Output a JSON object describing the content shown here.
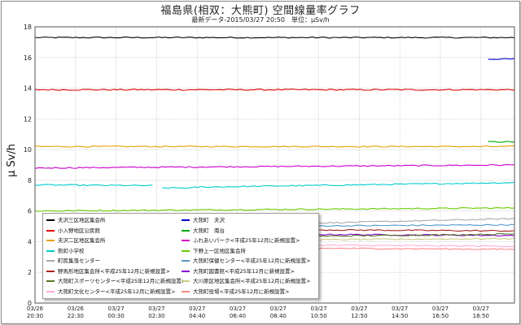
{
  "title": "福島県(相双：大熊町) 空間線量率グラフ",
  "subtitle": "最新データ-2015/03/27 20:50　単位：μSv/h",
  "chart_data": {
    "type": "line",
    "title": "福島県(相双：大熊町) 空間線量率グラフ",
    "ylabel": "μ Sv/h",
    "xlabel": "",
    "ylim": [
      0,
      18
    ],
    "yticks": [
      0,
      2,
      4,
      6,
      8,
      10,
      12,
      14,
      16,
      18
    ],
    "grid": true,
    "legend_position": "bottom-left",
    "xticks": [
      {
        "d": "03/26",
        "t": "20:30"
      },
      {
        "d": "03/26",
        "t": "22:30"
      },
      {
        "d": "03/27",
        "t": "00:30"
      },
      {
        "d": "03/27",
        "t": "02:30"
      },
      {
        "d": "03/27",
        "t": "04:40"
      },
      {
        "d": "03/27",
        "t": "06:40"
      },
      {
        "d": "03/27",
        "t": "08:40"
      },
      {
        "d": "03/27",
        "t": "10:50"
      },
      {
        "d": "03/27",
        "t": "12:50"
      },
      {
        "d": "03/27",
        "t": "14:50"
      },
      {
        "d": "03/27",
        "t": "16:50"
      },
      {
        "d": "03/27",
        "t": "18:50"
      }
    ],
    "series": [
      {
        "name": "夫沢三区地区集会所",
        "color": "#000000",
        "segments": [
          {
            "from": 0,
            "to": 1,
            "start": 17.3,
            "end": 17.3
          }
        ]
      },
      {
        "name": "大熊町　夫沢",
        "color": "#0000cc",
        "segments": [
          {
            "from": 0.945,
            "to": 1,
            "start": 15.9,
            "end": 15.9
          }
        ]
      },
      {
        "name": "小入野地区公民館",
        "color": "#dd0000",
        "segments": [
          {
            "from": 0,
            "to": 1,
            "start": 13.9,
            "end": 13.9
          }
        ]
      },
      {
        "name": "大熊町　南台",
        "color": "#00aa00",
        "segments": [
          {
            "from": 0.945,
            "to": 1,
            "start": 10.5,
            "end": 10.5
          }
        ]
      },
      {
        "name": "夫沢二区地区集会所",
        "color": "#e8a000",
        "segments": [
          {
            "from": 0,
            "to": 1,
            "start": 10.2,
            "end": 10.2
          }
        ]
      },
      {
        "name": "ふれあいパーク<平成25年12月に新規設置>",
        "color": "#cc00cc",
        "segments": [
          {
            "from": 0,
            "to": 1,
            "start": 8.8,
            "end": 9.0
          }
        ]
      },
      {
        "name": "熊町小学校",
        "color": "#00cccc",
        "segments": [
          {
            "from": 0,
            "to": 0.245,
            "start": 7.7,
            "end": 7.65
          },
          {
            "from": 0.265,
            "to": 0.33,
            "start": 7.5,
            "end": 7.5
          },
          {
            "from": 0.33,
            "to": 1,
            "start": 7.55,
            "end": 7.85
          }
        ]
      },
      {
        "name": "下野上一区地区集会所",
        "color": "#66cc00",
        "segments": [
          {
            "from": 0,
            "to": 1,
            "start": 6.0,
            "end": 6.2
          }
        ]
      },
      {
        "name": "町民集落センター",
        "color": "#aaaaaa",
        "segments": [
          {
            "from": 0.43,
            "to": 1,
            "start": 5.1,
            "end": 5.5
          }
        ]
      },
      {
        "name": "大熊町保健センター<平成25年12月に新規設置>",
        "color": "#5599cc",
        "segments": [
          {
            "from": 0.43,
            "to": 1,
            "start": 5.0,
            "end": 5.1
          }
        ]
      },
      {
        "name": "野馬形地区集会所<平成25年12月に新規設置>",
        "color": "#aa2222",
        "segments": [
          {
            "from": 0.43,
            "to": 1,
            "start": 4.8,
            "end": 4.7
          }
        ]
      },
      {
        "name": "大熊町図書館<平成25年12月に新規設置>",
        "color": "#8800cc",
        "segments": [
          {
            "from": 0.43,
            "to": 1,
            "start": 4.5,
            "end": 4.4
          }
        ]
      },
      {
        "name": "大熊町スポーツセンター<平成25年12月に新規設置>",
        "color": "#557722",
        "segments": [
          {
            "from": 0.43,
            "to": 1,
            "start": 4.3,
            "end": 4.5
          }
        ]
      },
      {
        "name": "大川原区地区集会所<平成25年12月に新規設置>",
        "color": "#cccc88",
        "segments": [
          {
            "from": 0.43,
            "to": 1,
            "start": 4.1,
            "end": 4.2
          }
        ]
      },
      {
        "name": "大熊町文化センター<平成25年12月に新規設置>",
        "color": "#ffaadd",
        "segments": [
          {
            "from": 0.43,
            "to": 1,
            "start": 3.8,
            "end": 3.7
          }
        ]
      },
      {
        "name": "大熊町役場<平成25年12月に新規設置>",
        "color": "#ff8888",
        "segments": [
          {
            "from": 0.43,
            "to": 1,
            "start": 3.6,
            "end": 3.5
          }
        ]
      }
    ]
  }
}
